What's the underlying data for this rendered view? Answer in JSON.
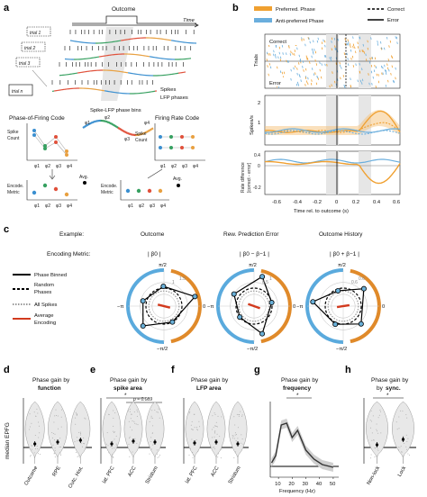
{
  "panels": {
    "a": "a",
    "b": "b",
    "c": "c",
    "d": "d",
    "e": "e",
    "f": "f",
    "g": "g",
    "h": "h"
  },
  "panel_a": {
    "outcome": "Outcome",
    "time": "Time",
    "trials": [
      "trial 1",
      "trial 2",
      "trial 3",
      "trial n"
    ],
    "spikes": "Spikes",
    "lfp_phases": "LFP phases",
    "bins_title": "Spike-LFP phase bins",
    "phase_code": "Phase-of-Firing Code",
    "rate_code": "Firing Rate Code",
    "spike_count": [
      "Spike",
      "Count"
    ],
    "encode_metric": [
      "Encode.",
      "Metric"
    ],
    "avg": "Avg.",
    "phi_labels": [
      "φ1",
      "φ2",
      "φ3",
      "φ4"
    ]
  },
  "panel_b": {
    "legend_pref": "Preferred. Phase",
    "legend_anti": "Anti-preferred Phase",
    "legend_correct": "Correct",
    "legend_error": "Error",
    "raster_correct": "Correct",
    "raster_error": "Error",
    "trials_label": "Trials",
    "spikes_label": "Spikes/s",
    "rate_diff_label": [
      "Rate difference",
      "[correct - error]"
    ],
    "xlabel": "Time rel. to outcome (s)",
    "xticks": [
      "-0.6",
      "-0.4",
      "-0.2",
      "0",
      "0.2",
      "0.4",
      "0.6"
    ],
    "y_spikes_ticks": [
      "2",
      "1"
    ],
    "y_diff_ticks": [
      "0.4",
      "0",
      "-0.2"
    ],
    "colors": {
      "pref": "#f0a030",
      "anti": "#6aaedd"
    }
  },
  "panel_c": {
    "example": "Example:",
    "encoding_metric": "Encoding Metric:",
    "titles": [
      "Outcome",
      "Rew. Prediction Error",
      "Outcome History"
    ],
    "metrics": [
      "| β0 |",
      "| β0 − β−1 |",
      "| β0 + β−1 |"
    ],
    "legend": [
      "Phase Binned",
      "Random",
      "Phases",
      "All Spikes",
      "Average",
      "Encoding"
    ],
    "angle_labels": {
      "top": "π/2",
      "left": "−π",
      "right": "0",
      "bottom": "−π/2"
    },
    "ring_values": [
      [
        "1",
        "1.5"
      ],
      [
        "0.5",
        "1"
      ],
      [
        "0.6",
        "0.6"
      ]
    ]
  },
  "bottom": {
    "ylabel": "median EPFG",
    "d": {
      "title": [
        "Phase gain by",
        "function"
      ],
      "cats": [
        "Outcome",
        "RPE",
        "Outc. Hist."
      ]
    },
    "e": {
      "title": [
        "Phase gain by",
        "spike area"
      ],
      "cats": [
        "lat. PFC",
        "ACC",
        "Striatum"
      ],
      "star": "*",
      "p": "p = 0.089"
    },
    "f": {
      "title": [
        "Phase gain by",
        "LFP area"
      ],
      "cats": [
        "lat. PFC",
        "ACC",
        "Striatum"
      ]
    },
    "g": {
      "title": [
        "Phase gain by",
        "frequency"
      ],
      "xlabel": "Frequency (Hz)",
      "xticks": [
        "10",
        "20",
        "30",
        "40",
        "50"
      ],
      "star": "*"
    },
    "h": {
      "title": [
        "Phase gain by",
        "sync."
      ],
      "cats": [
        "Non-lock",
        "Lock"
      ],
      "star": "*"
    }
  }
}
